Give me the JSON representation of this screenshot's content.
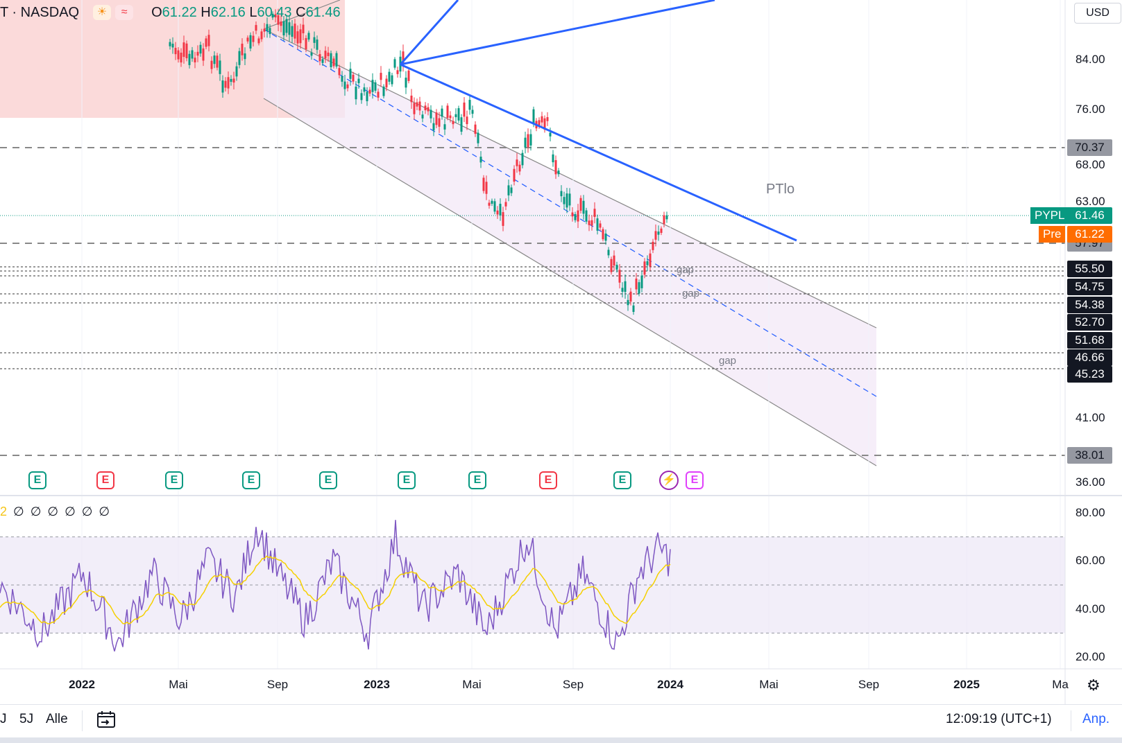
{
  "header": {
    "symbol": "T · NASDAQ",
    "open_label": "O",
    "open": "61.22",
    "high_label": "H",
    "high": "62.16",
    "low_label": "L",
    "low": "60.43",
    "close_label": "C",
    "close": "61.46",
    "sun_icon": "☀",
    "wave_icon": "≈"
  },
  "currency": "USD",
  "price_axis": {
    "labels": [
      {
        "value": "84.00",
        "price": 84
      },
      {
        "value": "76.00",
        "price": 76
      },
      {
        "value": "68.00",
        "price": 68
      },
      {
        "value": "63.00",
        "price": 63
      },
      {
        "value": "41.00",
        "price": 41
      },
      {
        "value": "36.00",
        "price": 36
      }
    ],
    "tags": [
      {
        "value": "70.37",
        "style": "lgray",
        "price": 70.37
      },
      {
        "value": "57.97",
        "style": "lgray",
        "price": 57.97
      },
      {
        "value": "55.50",
        "style": "dark",
        "price": 55.5
      },
      {
        "value": "54.75",
        "style": "dark",
        "price": 54.75
      },
      {
        "value": "54.38",
        "style": "dark",
        "price": 54.38
      },
      {
        "value": "52.70",
        "style": "dark",
        "price": 52.7
      },
      {
        "value": "51.68",
        "style": "dark",
        "price": 51.68
      },
      {
        "value": "46.66",
        "style": "dark",
        "price": 46.66
      },
      {
        "value": "45.23",
        "style": "dark",
        "price": 45.23
      },
      {
        "value": "38.01",
        "style": "lgray",
        "price": 38.01
      }
    ],
    "pypl_label": "PYPL",
    "pypl_value": "61.46",
    "pre_label": "Pre",
    "pre_value": "61.22"
  },
  "drawings": {
    "ptlo_label": "PTlo",
    "gap_labels": [
      "gap",
      "gap",
      "gap"
    ]
  },
  "earnings": {
    "badge_letter": "E",
    "items": [
      {
        "type": "up"
      },
      {
        "type": "down"
      },
      {
        "type": "up"
      },
      {
        "type": "up"
      },
      {
        "type": "up"
      },
      {
        "type": "up"
      },
      {
        "type": "up"
      },
      {
        "type": "down"
      },
      {
        "type": "up"
      },
      {
        "type": "future"
      }
    ],
    "bolt_icon": "⚡"
  },
  "rsi": {
    "legend_prefix": "2",
    "legend_values": "∅ ∅ ∅ ∅ ∅ ∅",
    "axis_labels": [
      {
        "value": "80.00",
        "level": 80
      },
      {
        "value": "60.00",
        "level": 60
      },
      {
        "value": "40.00",
        "level": 40
      },
      {
        "value": "20.00",
        "level": 20
      }
    ],
    "band_upper": 70,
    "band_mid": 50,
    "band_lower": 30
  },
  "time_axis": [
    {
      "label": "2022",
      "year": true
    },
    {
      "label": "Mai",
      "year": false
    },
    {
      "label": "Sep",
      "year": false
    },
    {
      "label": "2023",
      "year": true
    },
    {
      "label": "Mai",
      "year": false
    },
    {
      "label": "Sep",
      "year": false
    },
    {
      "label": "2024",
      "year": true
    },
    {
      "label": "Mai",
      "year": false
    },
    {
      "label": "Sep",
      "year": false
    },
    {
      "label": "2025",
      "year": true
    },
    {
      "label": "Ma",
      "year": false
    }
  ],
  "bottom_bar": {
    "range_j": "J",
    "range_5j": "5J",
    "range_all": "Alle",
    "calendar_icon": "calendar-range-icon",
    "clock": "12:09:19 (UTC+1)",
    "adjust": "Anp."
  },
  "colors": {
    "up": "#089981",
    "down": "#f23645",
    "trend_blue": "#2962ff",
    "channel_fill": "#f3e8f7",
    "red_zone": "#fad4d4",
    "rsi_line": "#7e57c2",
    "rsi_ma": "#f5d000"
  }
}
